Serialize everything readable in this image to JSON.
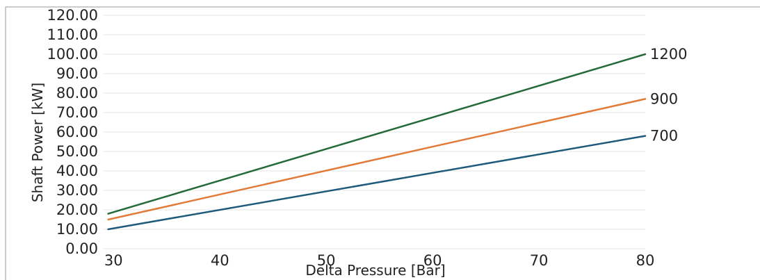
{
  "chart_data": {
    "type": "line",
    "title": "",
    "xlabel": "Delta Pressure [Bar]",
    "ylabel": "Shaft Power [kW]",
    "xlim": [
      29,
      80
    ],
    "ylim": [
      0,
      120
    ],
    "x_ticks": [
      "30",
      "40",
      "50",
      "60",
      "70",
      "80"
    ],
    "x_tick_values": [
      30,
      40,
      50,
      60,
      70,
      80
    ],
    "y_ticks": [
      "0.00",
      "10.00",
      "20.00",
      "30.00",
      "40.00",
      "50.00",
      "60.00",
      "70.00",
      "80.00",
      "90.00",
      "100.00",
      "110.00",
      "120.00"
    ],
    "y_tick_values": [
      0,
      10,
      20,
      30,
      40,
      50,
      60,
      70,
      80,
      90,
      100,
      110,
      120
    ],
    "grid": true,
    "legend": "none",
    "series": [
      {
        "name": "1200",
        "color": "#256b3a",
        "x": [
          29.5,
          80
        ],
        "y": [
          18,
          100
        ]
      },
      {
        "name": "900",
        "color": "#e07b39",
        "x": [
          29.5,
          80
        ],
        "y": [
          15,
          77
        ]
      },
      {
        "name": "700",
        "color": "#1e5b7a",
        "x": [
          29.5,
          80
        ],
        "y": [
          10,
          58
        ]
      }
    ]
  }
}
